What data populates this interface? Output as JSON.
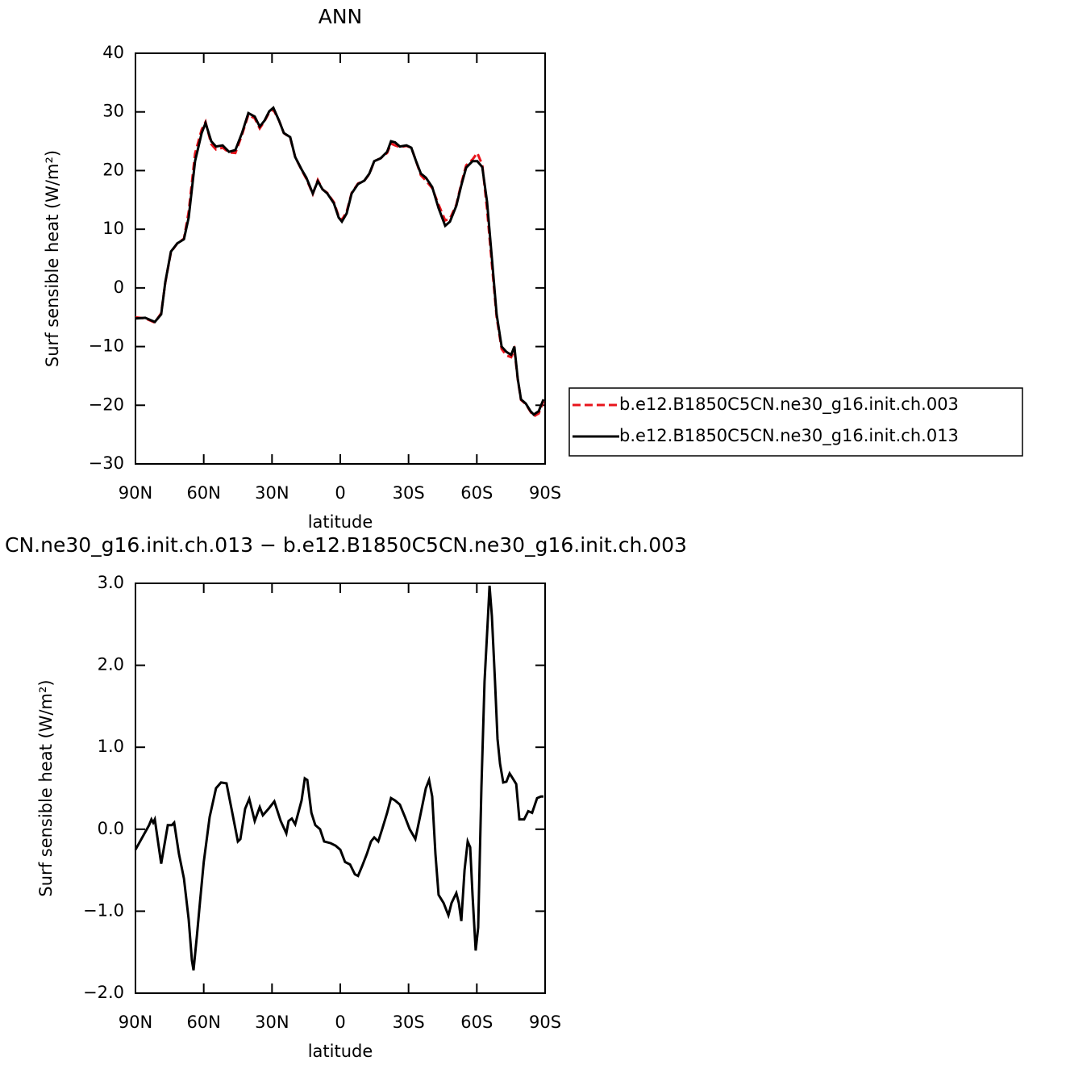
{
  "chart_data": [
    {
      "type": "line",
      "title": "ANN",
      "x_label": "latitude",
      "y_label": "Surf  sensible  heat  (W/m²)",
      "xlim": [
        90,
        -90
      ],
      "ylim": [
        -30,
        40
      ],
      "xticks": [
        {
          "value": 90,
          "label": "90N"
        },
        {
          "value": 60,
          "label": "60N"
        },
        {
          "value": 30,
          "label": "30N"
        },
        0,
        {
          "value": -30,
          "label": "30S"
        },
        {
          "value": -60,
          "label": "60S"
        },
        {
          "value": -90,
          "label": "90S"
        }
      ],
      "yticks": [
        {
          "value": -30,
          "label": "−30"
        },
        {
          "value": -20,
          "label": "−20"
        },
        {
          "value": -10,
          "label": "−10"
        },
        0,
        10,
        20,
        30,
        40
      ],
      "legend": "outside-right",
      "x": [
        90,
        85.7,
        81.5,
        78.7,
        76.9,
        74.4,
        71.6,
        68.7,
        66.6,
        63.8,
        60.9,
        59.2,
        56.7,
        54.6,
        51.7,
        48.9,
        46.1,
        43.2,
        40.4,
        37.6,
        35.4,
        33.3,
        31.2,
        29.4,
        26.9,
        24.8,
        22,
        19.8,
        17,
        14.9,
        12.1,
        9.9,
        7.8,
        5.7,
        2.8,
        0.7,
        -0.7,
        -2.8,
        -5,
        -7.8,
        -10.6,
        -12.8,
        -14.9,
        -17.7,
        -20.6,
        -22.3,
        -24.1,
        -26.2,
        -29.1,
        -31.2,
        -33.3,
        -35.4,
        -37.6,
        -40.4,
        -43.2,
        -46.1,
        -48.2,
        -51,
        -53.2,
        -55.3,
        -58.1,
        -60.2,
        -62.4,
        -64.5,
        -66.6,
        -68.7,
        -70.9,
        -73,
        -75.1,
        -76.5,
        -78,
        -79.4,
        -81.5,
        -83.6,
        -85,
        -87.2,
        -89.3
      ],
      "series": [
        {
          "name": "b.e12.B1850C5CN.ne30_g16.init.ch.003",
          "color": "#e8141c",
          "line_style": "dashed",
          "values": [
            -5.0,
            -5.2,
            -5.9,
            -4.3,
            0.9,
            6.1,
            7.6,
            8.4,
            13.0,
            22.9,
            27.0,
            28.3,
            24.5,
            23.6,
            23.9,
            23.1,
            23.0,
            26.1,
            29.5,
            28.9,
            27.2,
            28.4,
            29.9,
            30.4,
            28.5,
            26.4,
            25.6,
            22.3,
            20.1,
            18.6,
            16.0,
            18.4,
            16.8,
            16.2,
            14.6,
            12.2,
            11.6,
            13.0,
            16.2,
            17.8,
            18.3,
            19.4,
            21.6,
            22.1,
            23.0,
            24.6,
            24.3,
            24.0,
            24.2,
            23.9,
            21.6,
            19.2,
            18.3,
            17.0,
            14.2,
            11.5,
            11.8,
            14.2,
            17.8,
            20.9,
            21.9,
            23.0,
            21.0,
            13.4,
            4.0,
            -5.0,
            -10.4,
            -11.5,
            -11.8,
            -10.5,
            -15.6,
            -19.1,
            -19.8,
            -21.1,
            -21.9,
            -21.4,
            -19.3
          ]
        },
        {
          "name": "b.e12.B1850C5CN.ne30_g16.init.ch.013",
          "color": "#000000",
          "line_style": "solid",
          "values": [
            -5.2,
            -5.1,
            -5.8,
            -4.5,
            1,
            6.2,
            7.6,
            8.3,
            12,
            21.6,
            26.4,
            28.1,
            25,
            24.1,
            24.3,
            23.2,
            23.5,
            26.4,
            29.8,
            29.2,
            27.5,
            28.5,
            30.1,
            30.7,
            28.5,
            26.4,
            25.7,
            22.3,
            20.2,
            18.8,
            16.1,
            18.2,
            16.8,
            16.1,
            14.4,
            12,
            11.3,
            12.7,
            16.1,
            17.7,
            18.3,
            19.5,
            21.6,
            22.1,
            23.2,
            25,
            24.8,
            24.1,
            24.3,
            23.9,
            21.6,
            19.5,
            18.8,
            17.2,
            13.6,
            10.6,
            11.3,
            14,
            17.5,
            20.5,
            21.6,
            21.6,
            20.6,
            14.7,
            5.1,
            -4.5,
            -10,
            -10.9,
            -11.4,
            -10,
            -15.5,
            -19,
            -19.7,
            -21,
            -21.6,
            -21,
            -19
          ]
        }
      ]
    },
    {
      "type": "line",
      "title": "CN.ne30_g16.init.ch.013 − b.e12.B1850C5CN.ne30_g16.init.ch.003",
      "x_label": "latitude",
      "y_label": "Surf  sensible  heat  (W/m²)",
      "xlim": [
        90,
        -90
      ],
      "ylim": [
        -2,
        3
      ],
      "xticks": [
        {
          "value": 90,
          "label": "90N"
        },
        {
          "value": 60,
          "label": "60N"
        },
        {
          "value": 30,
          "label": "30N"
        },
        0,
        {
          "value": -30,
          "label": "30S"
        },
        {
          "value": -60,
          "label": "60S"
        },
        {
          "value": -90,
          "label": "90S"
        }
      ],
      "yticks": [
        {
          "value": -2,
          "label": "−2.0"
        },
        {
          "value": -1,
          "label": "−1.0"
        },
        {
          "value": 0,
          "label": "0.0"
        },
        {
          "value": 1,
          "label": "1.0"
        },
        {
          "value": 2,
          "label": "2.0"
        },
        {
          "value": 3,
          "label": "3.0"
        }
      ],
      "color": "#000000",
      "x": [
        90,
        84,
        83,
        82.2,
        81.5,
        78.7,
        75.8,
        74,
        73,
        70.9,
        68.7,
        66.6,
        65.2,
        64.5,
        63,
        61.7,
        60,
        57.4,
        54.6,
        52.4,
        50,
        47.8,
        45,
        43.9,
        41.8,
        40,
        37.6,
        35.4,
        34,
        31.5,
        29,
        26.2,
        23.7,
        22.7,
        21.3,
        19.8,
        17,
        15.6,
        14.5,
        12.7,
        11,
        8.9,
        7.1,
        4.2,
        2.1,
        0,
        -2.1,
        -4.3,
        -6.4,
        -7.8,
        -9.6,
        -11.7,
        -13.5,
        -14.9,
        -16.7,
        -18.4,
        -20.6,
        -22.3,
        -24.1,
        -26.2,
        -28.4,
        -30.5,
        -33,
        -35.4,
        -37.6,
        -39,
        -40.4,
        -41.8,
        -43.2,
        -45.4,
        -47.5,
        -48.9,
        -51,
        -52.1,
        -53.2,
        -54.6,
        -56,
        -57.1,
        -58.1,
        -59.5,
        -60.6,
        -62,
        -63.4,
        -64.9,
        -65.6,
        -66.6,
        -68,
        -69.1,
        -70.2,
        -71.6,
        -73,
        -74.4,
        -75.8,
        -77.3,
        -78.7,
        -80.8,
        -82.6,
        -84.3,
        -86.5,
        -88.2,
        -89.3
      ],
      "values": [
        -0.25,
        0.05,
        0.12,
        0.08,
        0.12,
        -0.42,
        0.05,
        0.05,
        0.08,
        -0.3,
        -0.6,
        -1.1,
        -1.6,
        -1.72,
        -1.3,
        -0.9,
        -0.4,
        0.15,
        0.5,
        0.57,
        0.56,
        0.25,
        -0.15,
        -0.12,
        0.25,
        0.37,
        0.1,
        0.27,
        0.17,
        0.25,
        0.34,
        0.1,
        -0.05,
        0.1,
        0.13,
        0.06,
        0.35,
        0.62,
        0.6,
        0.2,
        0.05,
        0.0,
        -0.15,
        -0.17,
        -0.2,
        -0.25,
        -0.4,
        -0.43,
        -0.55,
        -0.57,
        -0.45,
        -0.3,
        -0.15,
        -0.1,
        -0.15,
        0.0,
        0.2,
        0.38,
        0.35,
        0.3,
        0.15,
        0.0,
        -0.12,
        0.2,
        0.5,
        0.6,
        0.4,
        -0.3,
        -0.8,
        -0.9,
        -1.05,
        -0.9,
        -0.78,
        -0.9,
        -1.12,
        -0.5,
        -0.15,
        -0.22,
        -0.8,
        -1.48,
        -1.2,
        0.5,
        1.8,
        2.6,
        2.97,
        2.6,
        1.8,
        1.1,
        0.8,
        0.57,
        0.58,
        0.68,
        0.62,
        0.55,
        0.12,
        0.12,
        0.22,
        0.2,
        0.38,
        0.4,
        0.4
      ]
    }
  ]
}
